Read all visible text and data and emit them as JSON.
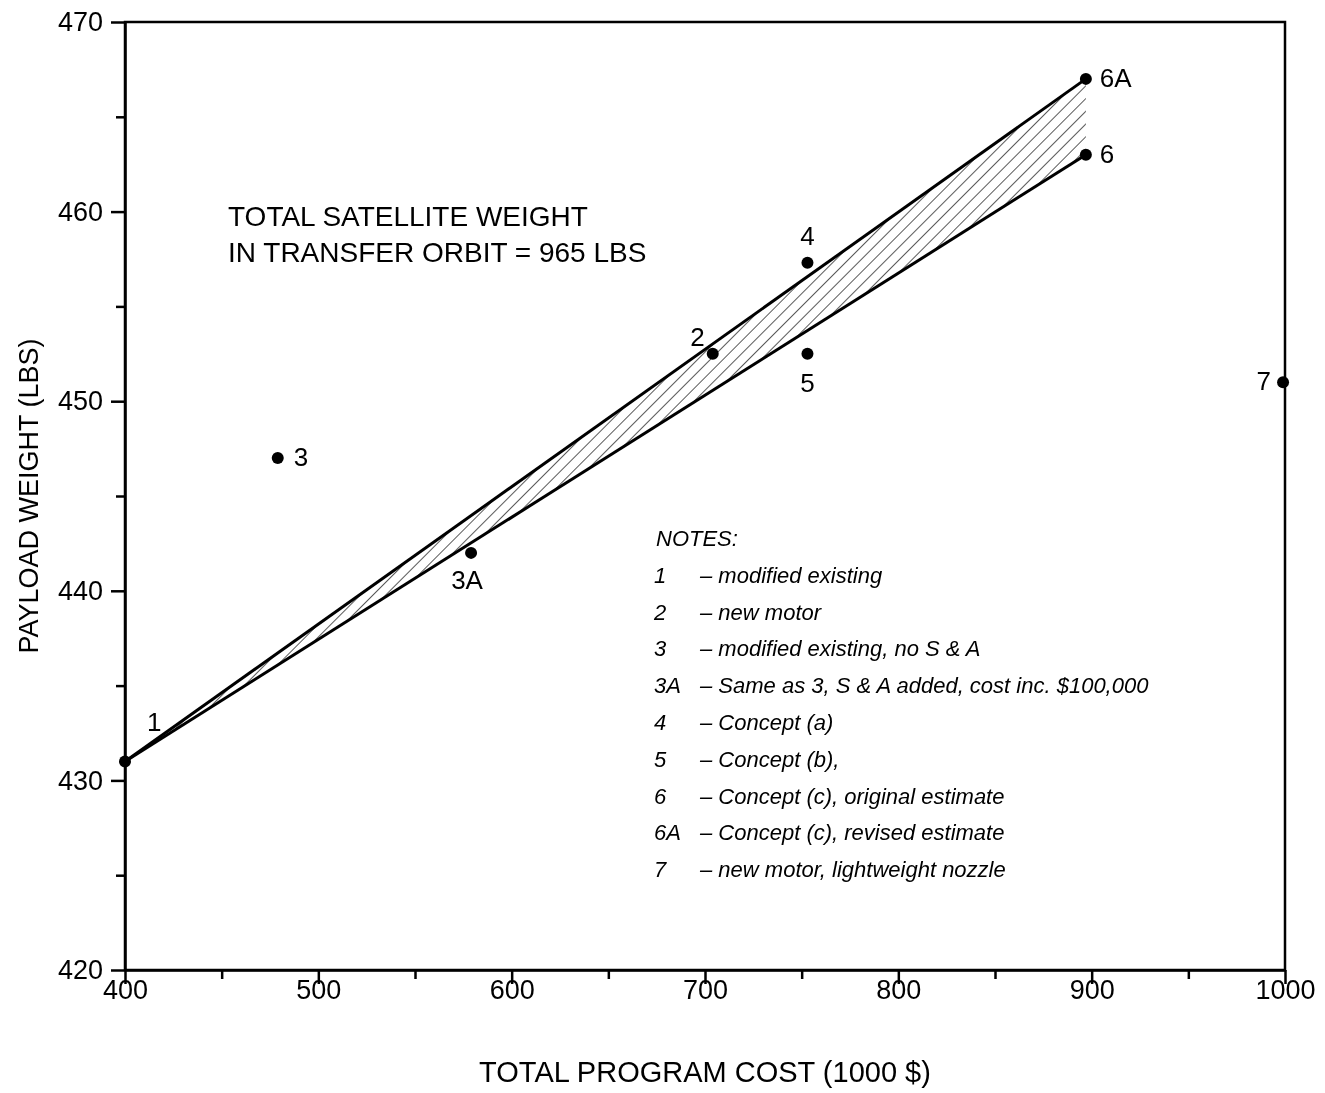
{
  "chart_data": {
    "type": "scatter",
    "xlabel": "TOTAL PROGRAM COST  (1000 $)",
    "ylabel": "PAYLOAD WEIGHT  (LBS)",
    "xlim": [
      400,
      1000
    ],
    "ylim": [
      420,
      470
    ],
    "xticks": [
      400,
      {
        "value": 450,
        "label": null
      },
      500,
      {
        "value": 550,
        "label": null
      },
      600,
      {
        "value": 650,
        "label": null
      },
      700,
      {
        "value": 750,
        "label": null
      },
      800,
      {
        "value": 850,
        "label": null
      },
      900,
      {
        "value": 950,
        "label": null
      },
      1000
    ],
    "yticks": [
      420,
      {
        "value": 425,
        "label": null
      },
      430,
      {
        "value": 435,
        "label": null
      },
      440,
      {
        "value": 445,
        "label": null
      },
      450,
      {
        "value": 455,
        "label": null
      },
      460,
      {
        "value": 465,
        "label": null
      },
      470
    ],
    "grid": false,
    "legend": false,
    "marker": "circle",
    "series": [
      {
        "type": "line",
        "marker": "none",
        "color": "#000000",
        "x": [
          400,
          897
        ],
        "values": [
          431,
          467
        ],
        "lower": [
          431,
          463
        ],
        "upper": [
          431,
          467
        ]
      },
      {
        "type": "line",
        "marker": "none",
        "color": "#000000",
        "x": [
          400,
          897
        ],
        "values": [
          431,
          463
        ]
      },
      {
        "name": "1",
        "color": "#000000",
        "x": [
          400
        ],
        "values": [
          431
        ]
      },
      {
        "name": "2",
        "color": "#000000",
        "x": [
          704
        ],
        "values": [
          452.5
        ]
      },
      {
        "name": "3",
        "color": "#000000",
        "x": [
          479
        ],
        "values": [
          447
        ]
      },
      {
        "name": "3A",
        "color": "#000000",
        "x": [
          579
        ],
        "values": [
          442
        ]
      },
      {
        "name": "4",
        "color": "#000000",
        "x": [
          753
        ],
        "values": [
          457.3
        ]
      },
      {
        "name": "5",
        "color": "#000000",
        "x": [
          753
        ],
        "values": [
          452.5
        ]
      },
      {
        "name": "6",
        "color": "#000000",
        "x": [
          897
        ],
        "values": [
          463
        ]
      },
      {
        "name": "6A",
        "color": "#000000",
        "x": [
          897
        ],
        "values": [
          467
        ]
      },
      {
        "name": "7",
        "color": "#000000",
        "x": [
          999
        ],
        "values": [
          451
        ]
      }
    ],
    "annotations": [
      "TOTAL SATELLITE WEIGHT\nIN TRANSFER ORBIT = 965 LBS",
      "NOTES:",
      "1\t– modified existing",
      "2\t– new motor",
      "3\t– modified existing, no S & A",
      "3A\t– Same as 3, S & A added, cost inc. $100,000",
      "4\t– Concept (a)",
      "5\t– Concept (b),",
      "6\t– Concept (c), original estimate",
      "6A\t– Concept (c), revised estimate",
      "7\t– new motor, lightweight nozzle"
    ]
  }
}
